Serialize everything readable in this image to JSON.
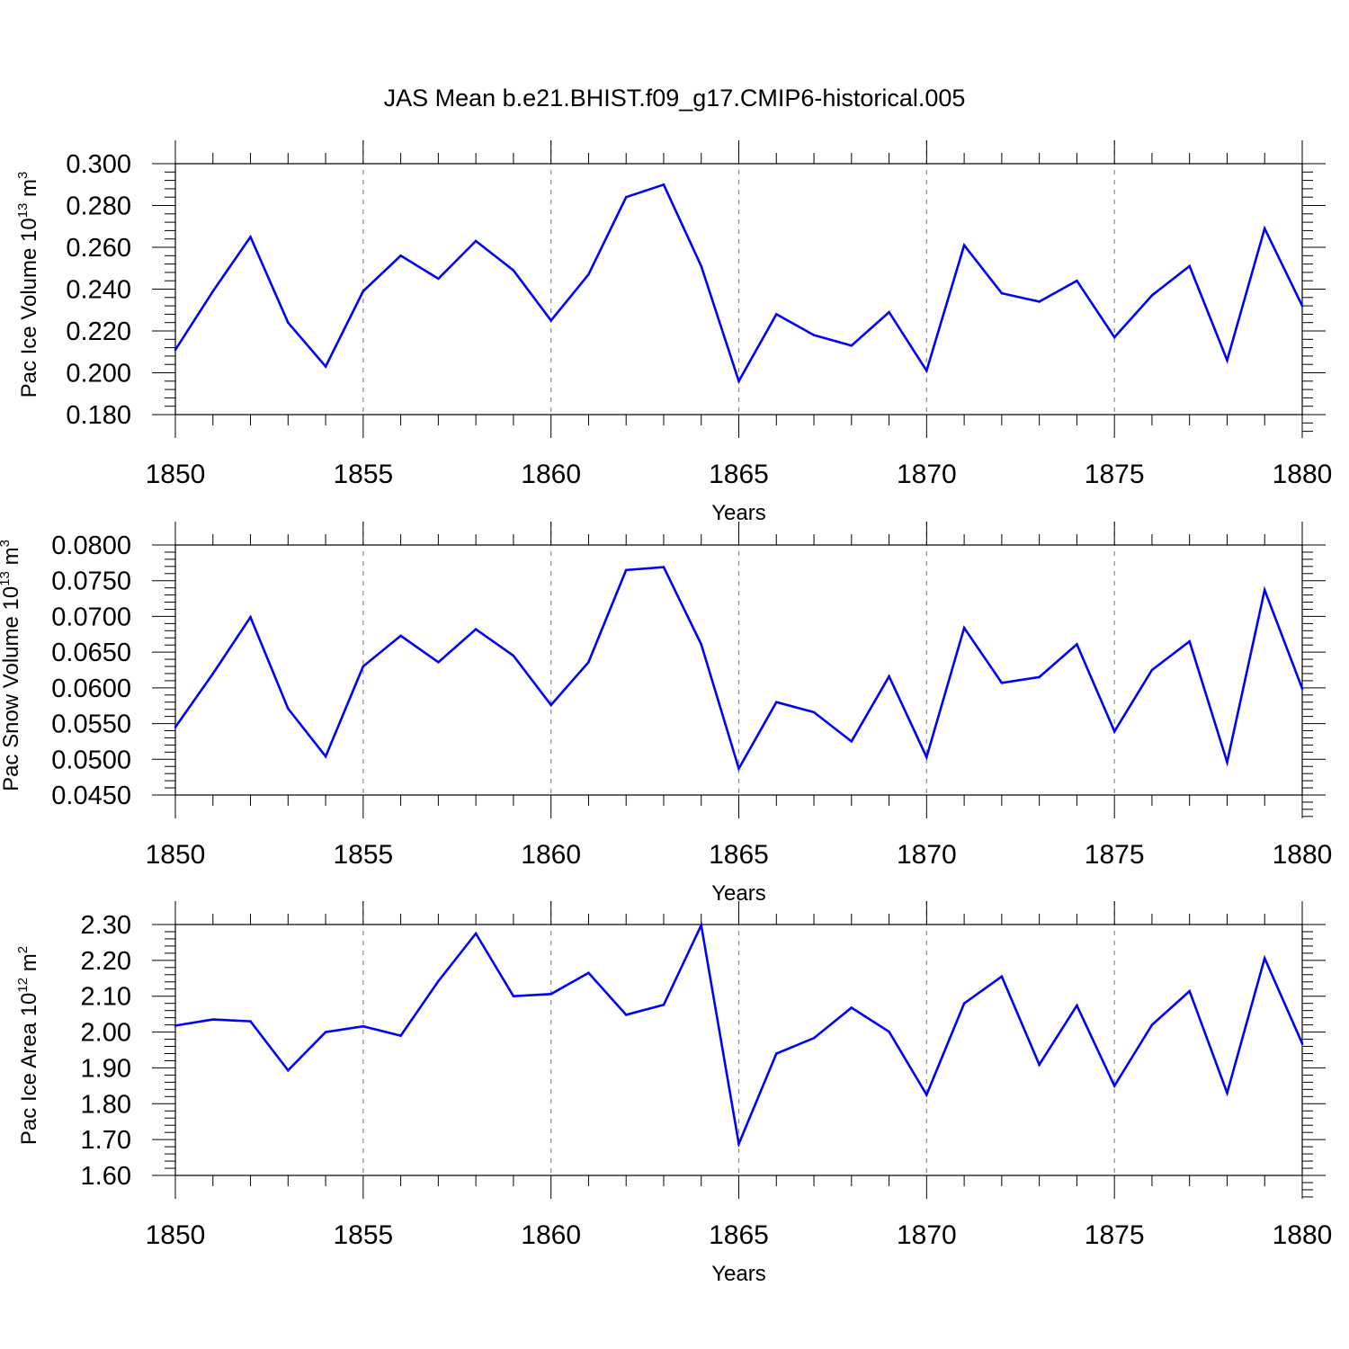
{
  "title": "JAS Mean b.e21.BHIST.f09_g17.CMIP6-historical.005",
  "colors": {
    "series": "#0000ff",
    "axis": "#000000",
    "grid": "#8c8c8c",
    "background": "#ffffff"
  },
  "chart_data": [
    {
      "type": "line",
      "ylabel": "Pac Ice Volume 10",
      "ylabel_exp": "13",
      "ylabel_unit": " m",
      "ylabel_unit_exp": "3",
      "xlabel": "Years",
      "xlim": [
        1850,
        1880
      ],
      "ylim": [
        0.18,
        0.3
      ],
      "xticks": [
        1850,
        1855,
        1860,
        1865,
        1870,
        1875,
        1880
      ],
      "yticks": [
        "0.300",
        "0.280",
        "0.260",
        "0.240",
        "0.220",
        "0.200",
        "0.180"
      ],
      "grid_x": "dashed at labelled years",
      "x": [
        1850,
        1851,
        1852,
        1853,
        1854,
        1855,
        1856,
        1857,
        1858,
        1859,
        1860,
        1861,
        1862,
        1863,
        1864,
        1865,
        1866,
        1867,
        1868,
        1869,
        1870,
        1871,
        1872,
        1873,
        1874,
        1875,
        1876,
        1877,
        1878,
        1879,
        1880
      ],
      "values": [
        0.211,
        0.239,
        0.265,
        0.224,
        0.203,
        0.239,
        0.256,
        0.245,
        0.263,
        0.249,
        0.225,
        0.247,
        0.284,
        0.29,
        0.251,
        0.196,
        0.228,
        0.218,
        0.213,
        0.229,
        0.201,
        0.261,
        0.238,
        0.234,
        0.244,
        0.217,
        0.237,
        0.251,
        0.206,
        0.269,
        0.232
      ]
    },
    {
      "type": "line",
      "ylabel": "Pac Snow Volume 10",
      "ylabel_exp": "13",
      "ylabel_unit": " m",
      "ylabel_unit_exp": "3",
      "xlabel": "Years",
      "xlim": [
        1850,
        1880
      ],
      "ylim": [
        0.045,
        0.08
      ],
      "xticks": [
        1850,
        1855,
        1860,
        1865,
        1870,
        1875,
        1880
      ],
      "yticks": [
        "0.0800",
        "0.0750",
        "0.0700",
        "0.0650",
        "0.0600",
        "0.0550",
        "0.0500",
        "0.0450"
      ],
      "grid_x": "dashed at labelled years",
      "x": [
        1850,
        1851,
        1852,
        1853,
        1854,
        1855,
        1856,
        1857,
        1858,
        1859,
        1860,
        1861,
        1862,
        1863,
        1864,
        1865,
        1866,
        1867,
        1868,
        1869,
        1870,
        1871,
        1872,
        1873,
        1874,
        1875,
        1876,
        1877,
        1878,
        1879,
        1880
      ],
      "values": [
        0.0545,
        0.062,
        0.0699,
        0.0571,
        0.0504,
        0.063,
        0.0673,
        0.0636,
        0.0682,
        0.0645,
        0.0576,
        0.0636,
        0.0765,
        0.0769,
        0.0661,
        0.0487,
        0.058,
        0.0566,
        0.0525,
        0.0616,
        0.0503,
        0.0684,
        0.0607,
        0.0615,
        0.0661,
        0.0539,
        0.0625,
        0.0665,
        0.0496,
        0.0737,
        0.0599
      ]
    },
    {
      "type": "line",
      "ylabel": "Pac Ice Area 10",
      "ylabel_exp": "12",
      "ylabel_unit": " m",
      "ylabel_unit_exp": "2",
      "xlabel": "Years",
      "xlim": [
        1850,
        1880
      ],
      "ylim": [
        1.6,
        2.3
      ],
      "xticks": [
        1850,
        1855,
        1860,
        1865,
        1870,
        1875,
        1880
      ],
      "yticks": [
        "2.30",
        "2.20",
        "2.10",
        "2.00",
        "1.90",
        "1.80",
        "1.70",
        "1.60"
      ],
      "grid_x": "dashed at labelled years",
      "x": [
        1850,
        1851,
        1852,
        1853,
        1854,
        1855,
        1856,
        1857,
        1858,
        1859,
        1860,
        1861,
        1862,
        1863,
        1864,
        1865,
        1866,
        1867,
        1868,
        1869,
        1870,
        1871,
        1872,
        1873,
        1874,
        1875,
        1876,
        1877,
        1878,
        1879,
        1880
      ],
      "values": [
        2.018,
        2.035,
        2.03,
        1.893,
        2.0,
        2.016,
        1.99,
        2.142,
        2.275,
        2.1,
        2.106,
        2.165,
        2.048,
        2.076,
        2.298,
        1.688,
        1.94,
        1.983,
        2.068,
        2.001,
        1.825,
        2.08,
        2.155,
        1.909,
        2.074,
        1.85,
        2.02,
        2.114,
        1.83,
        2.206,
        1.968
      ]
    }
  ]
}
